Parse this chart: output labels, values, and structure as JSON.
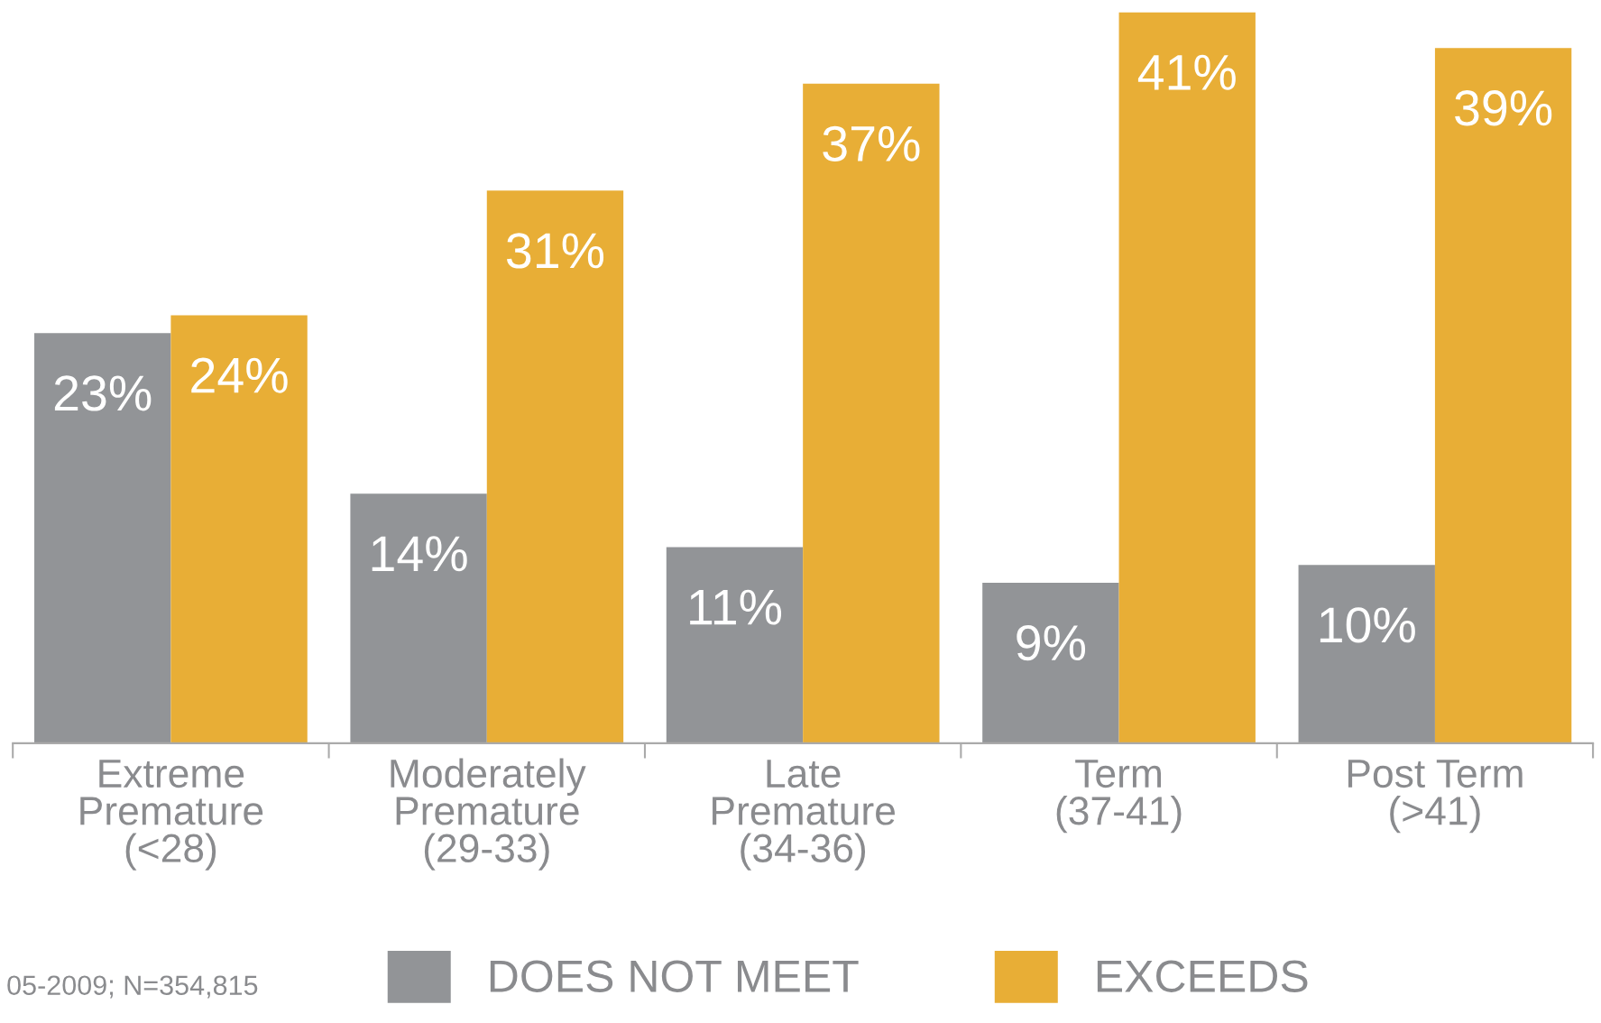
{
  "chart_data": {
    "type": "bar",
    "categories": [
      "Extreme\nPremature\n(<28)",
      "Moderately\nPremature\n(29-33)",
      "Late\nPremature\n(34-36)",
      "Term\n(37-41)",
      "Post Term\n(>41)"
    ],
    "series": [
      {
        "name": "DOES NOT MEET",
        "color": "#929497",
        "values": [
          23,
          14,
          11,
          9,
          10
        ],
        "value_labels": [
          "23%",
          "14%",
          "11%",
          "9%",
          "10%"
        ]
      },
      {
        "name": "EXCEEDS",
        "color": "#e8ae36",
        "values": [
          24,
          31,
          37,
          41,
          39
        ],
        "value_labels": [
          "24%",
          "31%",
          "37%",
          "41%",
          "39%"
        ]
      }
    ],
    "legend": "bottom",
    "annotations": [
      "05-2009; N=354,815"
    ]
  }
}
